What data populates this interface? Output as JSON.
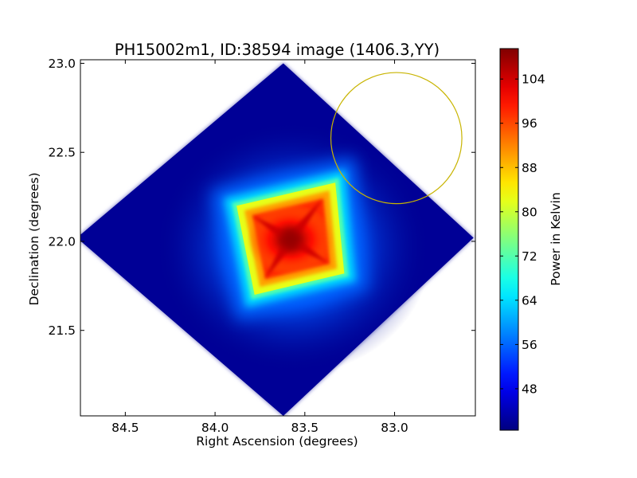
{
  "chart_data": [
    {
      "type": "heatmap",
      "title": "PH15002m1, ID:38594 image (1406.3,YY)",
      "xlabel": "Right Ascension (degrees)",
      "ylabel": "Declination (degrees)",
      "xlim": [
        84.75,
        82.55
      ],
      "ylim": [
        21.02,
        23.02
      ],
      "x_axis_inverted": true,
      "x_ticks": [
        84.5,
        84.0,
        83.5,
        83.0
      ],
      "x_tick_labels": [
        "84.5",
        "84.0",
        "83.5",
        "83.0"
      ],
      "y_ticks": [
        21.5,
        22.0,
        22.5,
        23.0
      ],
      "y_tick_labels": [
        "21.5",
        "22.0",
        "22.5",
        "23.0"
      ],
      "grid": false,
      "colormap": "jet",
      "footprint": {
        "shape": "diamond",
        "center": [
          83.63,
          22.01
        ],
        "corners": [
          [
            83.62,
            23.0
          ],
          [
            84.77,
            22.02
          ],
          [
            83.62,
            21.02
          ],
          [
            82.56,
            22.02
          ]
        ],
        "background_value_K": 41
      },
      "inner_square": {
        "corners": [
          [
            83.88,
            22.2
          ],
          [
            83.33,
            22.33
          ],
          [
            83.28,
            21.82
          ],
          [
            83.78,
            21.7
          ]
        ],
        "level_K": 82
      },
      "peak": {
        "position": [
          83.58,
          22.01
        ],
        "value_K": 108
      },
      "circle": {
        "center": [
          82.99,
          22.58
        ],
        "radius_deg": 0.365,
        "color": "#c8b400"
      }
    },
    {
      "type": "colorbar",
      "label": "Power in Kelvin",
      "range": [
        40.5,
        109.5
      ],
      "ticks": [
        48,
        56,
        64,
        72,
        80,
        88,
        96,
        104
      ],
      "tick_labels": [
        "48",
        "56",
        "64",
        "72",
        "80",
        "88",
        "96",
        "104"
      ],
      "colormap": "jet"
    }
  ]
}
